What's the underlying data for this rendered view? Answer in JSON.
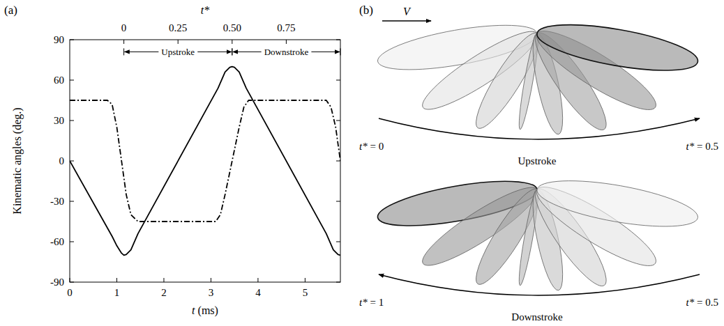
{
  "chart_data": {
    "type": "line",
    "panel_label": "(a)",
    "x_label": "t (ms)",
    "y_label": "Kinematic angles (deg.)",
    "xlim": [
      0,
      5.75
    ],
    "xticks": [
      0,
      1,
      2,
      3,
      4,
      5
    ],
    "ylim": [
      -90,
      90
    ],
    "yticks": [
      -90,
      -60,
      -30,
      0,
      30,
      60,
      90
    ],
    "top_axis": {
      "label": "t*",
      "lim": [
        -0.25,
        1.0
      ],
      "ticks": [
        0,
        0.25,
        {
          "value": 0.5,
          "label": "0.50"
        },
        0.75
      ]
    },
    "series": [
      {
        "color": "#000000",
        "line_style": "solid",
        "x": [
          0,
          0.9,
          1.0,
          1.1,
          1.15,
          1.2,
          1.3,
          1.45,
          3.15,
          3.3,
          3.4,
          3.45,
          3.5,
          3.6,
          3.75,
          5.45,
          5.6,
          5.7,
          5.75
        ],
        "values": [
          0,
          -56,
          -63,
          -68.5,
          -70,
          -69.5,
          -66,
          -54,
          54,
          66,
          69.5,
          70,
          69.5,
          66,
          54,
          -54,
          -66,
          -69.5,
          -70
        ]
      },
      {
        "color": "#000000",
        "line_style": "dash-dot",
        "x": [
          0,
          0.8,
          0.9,
          1.0,
          1.1,
          1.2,
          1.3,
          1.45,
          3.1,
          3.2,
          3.3,
          3.45,
          3.6,
          3.7,
          3.8,
          5.45,
          5.55,
          5.65,
          5.75
        ],
        "values": [
          45,
          45,
          42,
          25,
          0,
          -25,
          -40,
          -45,
          -45,
          -40,
          -25,
          0,
          25,
          40,
          45,
          45,
          40,
          25,
          0
        ]
      }
    ],
    "annotations": [
      {
        "text": "Upstroke",
        "x_start": 1.15,
        "x_end": 3.45,
        "y": 81
      },
      {
        "text": "Downstroke",
        "x_start": 3.45,
        "x_end": 5.75,
        "y": 81
      }
    ]
  },
  "diagram": {
    "panel_label": "(b)",
    "velocity_label": "V",
    "views": [
      {
        "title": "Upstroke",
        "left_label": "t* = 0",
        "right_label": "t* = 0.5",
        "direction": "right"
      },
      {
        "title": "Downstroke",
        "left_label": "t* = 1",
        "right_label": "t* = 0.5",
        "direction": "left"
      }
    ]
  }
}
